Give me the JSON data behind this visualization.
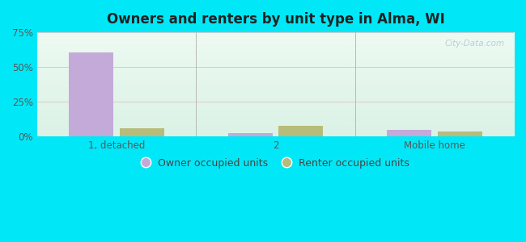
{
  "title": "Owners and renters by unit type in Alma, WI",
  "categories": [
    "1, detached",
    "2",
    "Mobile home"
  ],
  "owner_values": [
    60.5,
    2.5,
    4.5
  ],
  "renter_values": [
    5.5,
    7.5,
    3.5
  ],
  "owner_color": "#c4aad8",
  "renter_color": "#b8bc7a",
  "ylim": [
    0,
    75
  ],
  "yticks": [
    0,
    25,
    50,
    75
  ],
  "yticklabels": [
    "0%",
    "25%",
    "50%",
    "75%"
  ],
  "background_outer": "#00e8f8",
  "grid_color": "#dddddd",
  "bar_width": 0.28,
  "legend_labels": [
    "Owner occupied units",
    "Renter occupied units"
  ],
  "watermark": "City-Data.com"
}
